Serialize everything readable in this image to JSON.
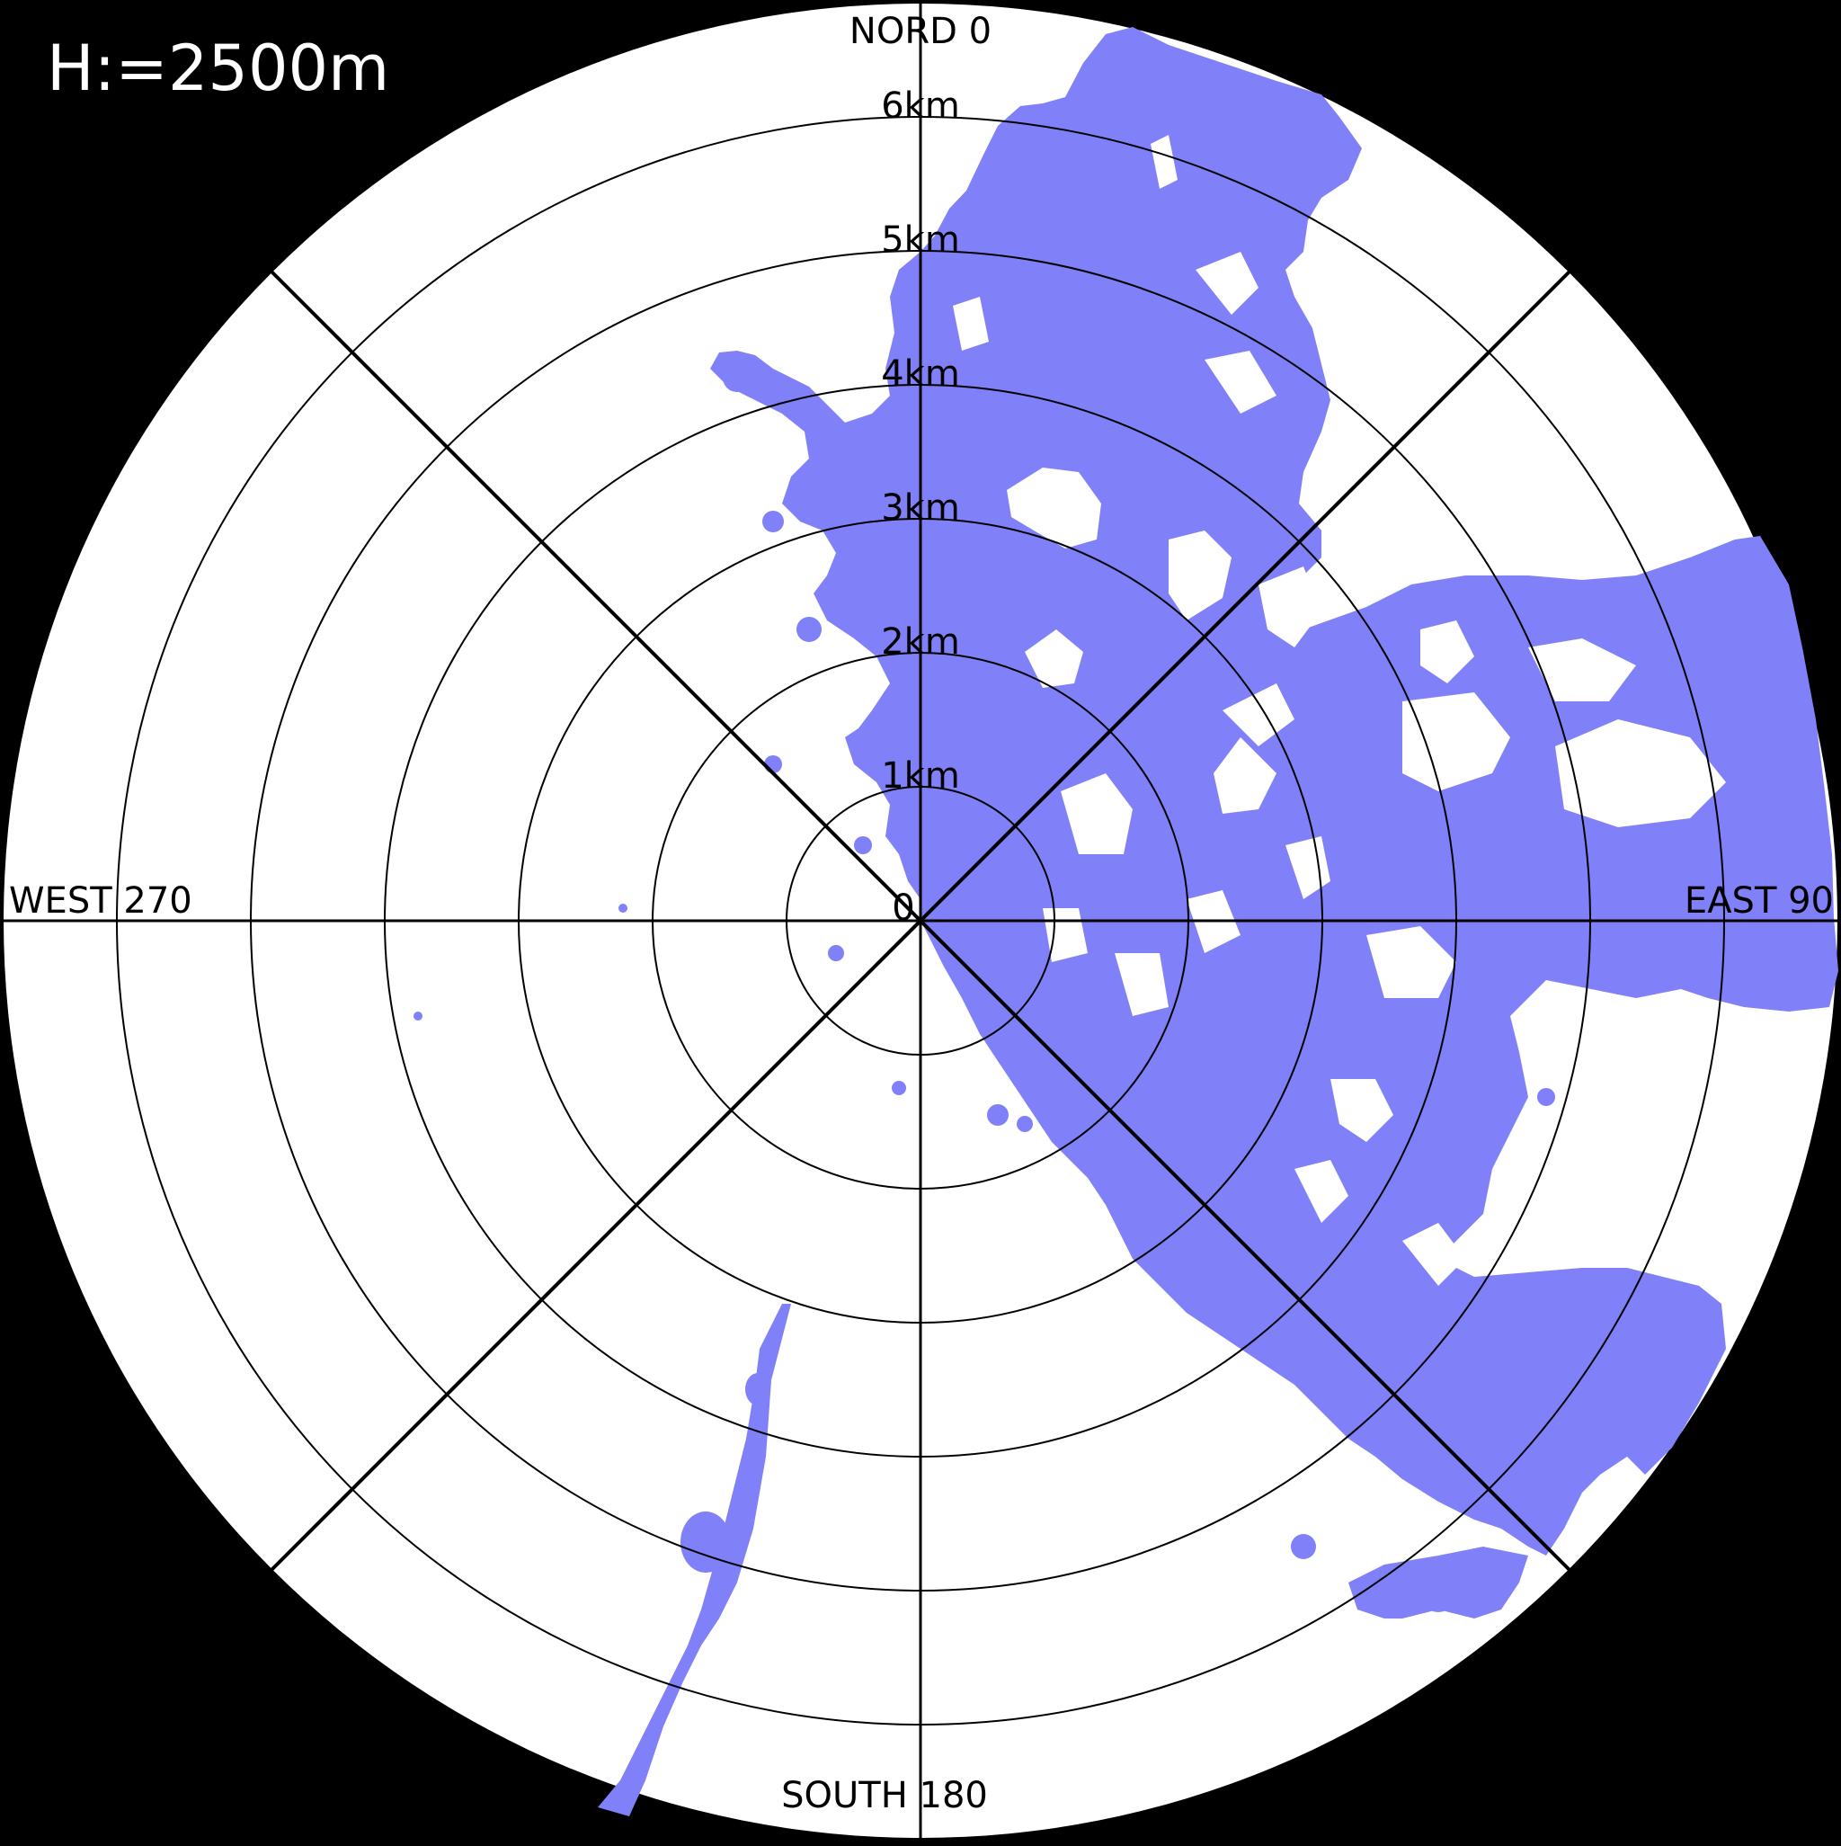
{
  "height_label": "H:=2500m",
  "directions": {
    "north": "NORD 0",
    "east": "EAST 90",
    "south": "SOUTH 180",
    "west": "WEST 270"
  },
  "origin_label": "0",
  "range_rings": [
    "1km",
    "2km",
    "3km",
    "4km",
    "5km",
    "6km"
  ],
  "colors": {
    "background": "#000000",
    "disk": "#ffffff",
    "echo": "#8080f8",
    "grid": "#000000"
  }
}
